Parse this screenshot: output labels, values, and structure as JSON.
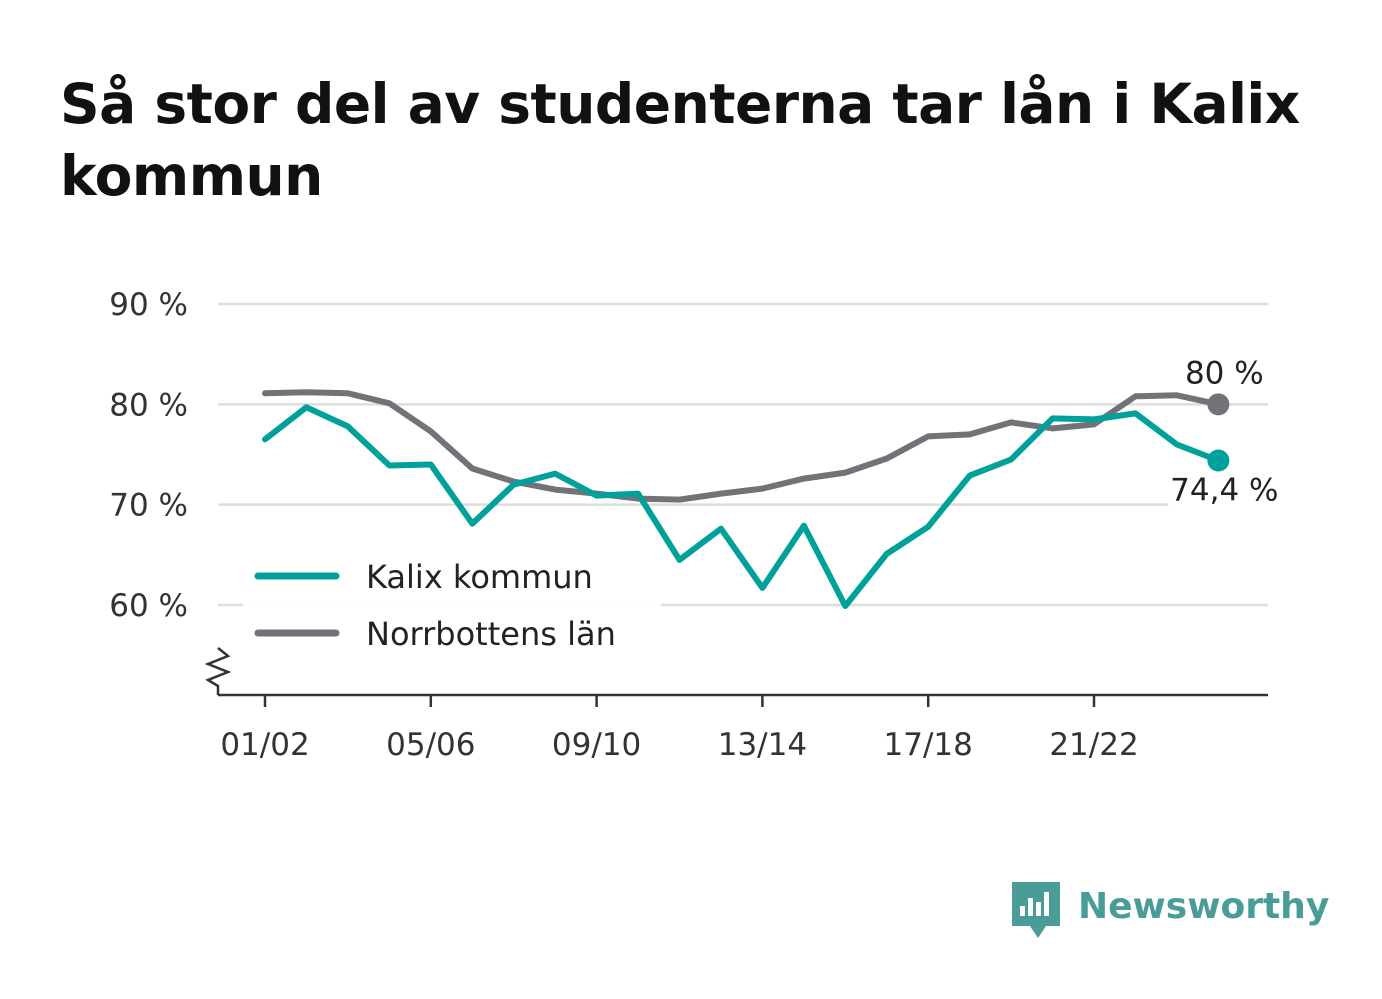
{
  "title": "Så stor del av studenterna tar lån i Kalix kommun",
  "brand": {
    "name": "Newsworthy",
    "icon": "newsworthy-logo-icon",
    "color": "#4a9c97"
  },
  "colors": {
    "kalix": "#00a19a",
    "norrbotten": "#737278",
    "grid": "#dddddd",
    "axis": "#333333"
  },
  "chart_data": {
    "type": "line",
    "title": "Så stor del av studenterna tar lån i Kalix kommun",
    "xlabel": "",
    "ylabel": "",
    "ylim": [
      51,
      90
    ],
    "y_ticks": [
      60,
      70,
      80,
      90
    ],
    "y_tick_labels": [
      "60 %",
      "70 %",
      "80 %",
      "90 %"
    ],
    "x": [
      "01/02",
      "02/03",
      "03/04",
      "04/05",
      "05/06",
      "06/07",
      "07/08",
      "08/09",
      "09/10",
      "10/11",
      "11/12",
      "12/13",
      "13/14",
      "14/15",
      "15/16",
      "16/17",
      "17/18",
      "18/19",
      "19/20",
      "20/21",
      "21/22",
      "22/23",
      "23/24",
      "24/25"
    ],
    "x_tick_labels": [
      "01/02",
      "05/06",
      "09/10",
      "13/14",
      "17/18",
      "21/22"
    ],
    "grid": true,
    "axis_break": true,
    "legend_position": "bottom-left",
    "series": [
      {
        "name": "Kalix kommun",
        "color": "#00a19a",
        "values": [
          76.5,
          79.7,
          77.8,
          73.9,
          74.0,
          68.1,
          72.0,
          73.1,
          70.9,
          71.1,
          64.5,
          67.6,
          61.7,
          67.9,
          59.9,
          65.1,
          67.8,
          72.9,
          74.5,
          78.6,
          78.5,
          79.1,
          76.0,
          74.4
        ],
        "end_label": "74,4 %"
      },
      {
        "name": "Norrbottens län",
        "color": "#737278",
        "values": [
          81.1,
          81.2,
          81.1,
          80.1,
          77.3,
          73.6,
          72.3,
          71.5,
          71.1,
          70.6,
          70.5,
          71.1,
          71.6,
          72.6,
          73.2,
          74.6,
          76.8,
          77.0,
          78.2,
          77.6,
          78.0,
          80.8,
          80.9,
          80.0
        ],
        "end_label": "80 %"
      }
    ]
  }
}
